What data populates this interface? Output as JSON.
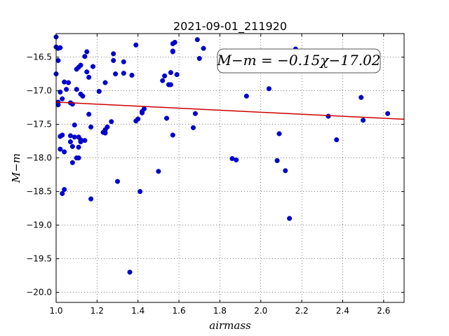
{
  "chart_data": {
    "type": "scatter",
    "title": "2021-09-01_211920",
    "xlabel": "airmass",
    "ylabel": "M−m",
    "xlim": [
      1.0,
      2.7
    ],
    "ylim": [
      -20.15,
      -16.15
    ],
    "y_inverted": false,
    "grid": true,
    "grid_style": "dotted",
    "xticks": [
      1.0,
      1.2,
      1.4,
      1.6,
      1.8,
      2.0,
      2.2,
      2.4,
      2.6
    ],
    "xtick_labels": [
      "1.0",
      "1.2",
      "1.4",
      "1.6",
      "1.8",
      "2.0",
      "2.2",
      "2.4",
      "2.6"
    ],
    "yticks": [
      -16.5,
      -17.0,
      -17.5,
      -18.0,
      -18.5,
      -19.0,
      -19.5,
      -20.0
    ],
    "ytick_labels": [
      "−16.5",
      "−17.0",
      "−17.5",
      "−18.0",
      "−18.5",
      "−19.0",
      "−19.5",
      "−20.0"
    ],
    "annotation": "M−m = −0.15χ−17.02",
    "annotation_position": "top-right",
    "fit": {
      "slope": -0.15,
      "intercept": -17.02,
      "color": "#cc0000"
    },
    "marker_color": "#0000cc",
    "points": {
      "x": [
        1.0,
        1.0,
        1.01,
        1.0,
        1.01,
        1.02,
        1.01,
        1.01,
        1.02,
        1.03,
        1.02,
        1.04,
        1.05,
        1.04,
        1.06,
        1.07,
        1.08,
        1.07,
        1.09,
        1.1,
        1.11,
        1.1,
        1.12,
        1.12,
        1.15,
        1.14,
        1.15,
        1.16,
        1.18,
        1.13,
        1.16,
        1.17,
        1.09,
        1.03,
        1.07,
        1.08,
        1.12,
        1.14,
        1.11,
        1.1,
        1.11,
        1.12,
        1.08,
        1.11,
        1.03,
        1.04,
        1.02,
        1.17,
        1.21,
        1.24,
        1.28,
        1.28,
        1.29,
        1.33,
        1.33,
        1.37,
        1.39,
        1.24,
        1.25,
        1.24,
        1.27,
        1.23,
        1.3,
        1.39,
        1.42,
        1.43,
        1.42,
        1.4,
        1.41,
        1.36,
        1.52,
        1.53,
        1.55,
        1.56,
        1.57,
        1.58,
        1.59,
        1.57,
        1.56,
        1.57,
        1.54,
        1.57,
        1.5,
        1.7,
        1.72,
        1.69,
        1.68,
        1.67,
        1.93,
        1.86,
        1.88,
        2.04,
        2.09,
        2.08,
        2.12,
        2.14,
        2.17,
        2.33,
        2.37,
        2.49,
        2.5,
        2.62
      ],
      "y": [
        -16.2,
        -16.35,
        -16.37,
        -16.75,
        -16.55,
        -16.36,
        -17.17,
        -17.21,
        -17.02,
        -17.12,
        -17.87,
        -16.87,
        -16.98,
        -17.91,
        -16.88,
        -17.18,
        -17.2,
        -17.76,
        -17.51,
        -16.68,
        -16.65,
        -16.98,
        -16.62,
        -17.05,
        -16.42,
        -16.49,
        -16.72,
        -16.8,
        -16.64,
        -17.08,
        -17.35,
        -17.54,
        -17.69,
        -17.66,
        -17.67,
        -18.07,
        -17.73,
        -17.74,
        -17.84,
        -18.0,
        -18.0,
        -17.76,
        -17.83,
        -17.69,
        -18.53,
        -18.47,
        -17.68,
        -18.61,
        -17.01,
        -16.88,
        -16.55,
        -16.45,
        -16.75,
        -16.57,
        -16.74,
        -16.77,
        -16.32,
        -17.63,
        -17.54,
        -17.58,
        -17.46,
        -17.62,
        -18.35,
        -17.45,
        -17.31,
        -17.27,
        -17.33,
        -17.42,
        -18.5,
        -19.7,
        -16.85,
        -16.78,
        -16.91,
        -16.73,
        -16.3,
        -16.28,
        -16.76,
        -16.41,
        -16.91,
        -17.66,
        -17.41,
        -16.42,
        -18.2,
        -16.52,
        -16.37,
        -16.24,
        -17.34,
        -17.55,
        -17.08,
        -18.01,
        -18.03,
        -16.97,
        -17.64,
        -18.04,
        -18.19,
        -18.9,
        -16.38,
        -17.38,
        -17.73,
        -17.1,
        -17.44,
        -17.34
      ]
    }
  }
}
